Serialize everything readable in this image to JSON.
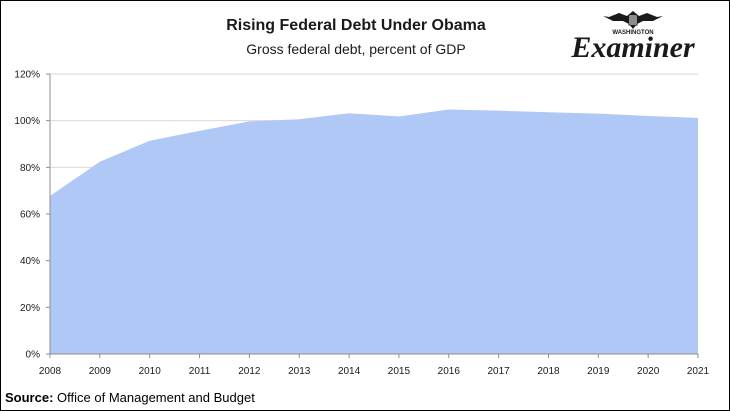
{
  "brand": {
    "wordmark": "Examiner",
    "tagline": "WASHINGTON",
    "color": "#1a1a1a"
  },
  "source": {
    "label": "Source:",
    "text": "Office of Management and Budget"
  },
  "chart_data": {
    "type": "area",
    "title": "Rising Federal Debt Under Obama",
    "subtitle": "Gross federal debt, percent of GDP",
    "xlabel": "",
    "ylabel": "",
    "x": [
      "2008",
      "2009",
      "2010",
      "2011",
      "2012",
      "2013",
      "2014",
      "2015",
      "2016",
      "2017",
      "2018",
      "2019",
      "2020",
      "2021"
    ],
    "values": [
      67.7,
      82.4,
      91.4,
      95.6,
      99.7,
      100.6,
      103.2,
      101.8,
      104.8,
      104.3,
      103.6,
      103.0,
      102.0,
      101.2
    ],
    "ylim": [
      0,
      120
    ],
    "yticks": [
      "0%",
      "20%",
      "40%",
      "60%",
      "80%",
      "100%",
      "120%"
    ],
    "ytick_values": [
      0,
      20,
      40,
      60,
      80,
      100,
      120
    ],
    "grid": true,
    "legend": "none",
    "fill_color": "#b0c8f5",
    "grid_color": "#d9d9d9"
  }
}
